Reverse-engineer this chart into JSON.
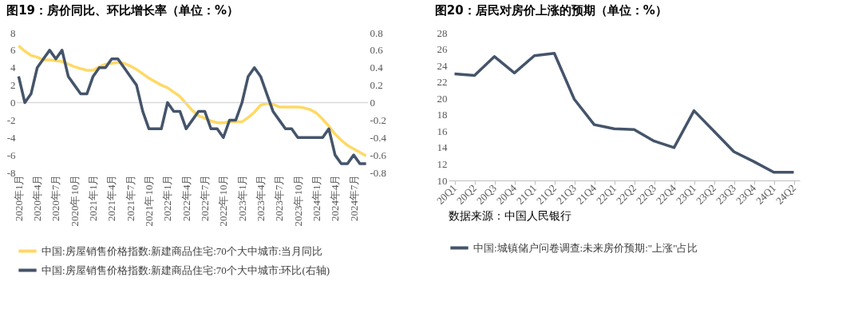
{
  "chart_data": [
    {
      "type": "line",
      "title": "图19：房价同比、环比增长率（单位：%）",
      "categories": [
        "2020年1月",
        null,
        null,
        "2020年4月",
        null,
        null,
        "2020年7月",
        null,
        null,
        "2020年10月",
        null,
        null,
        "2021年1月",
        null,
        null,
        "2021年4月",
        null,
        null,
        "2021年7月",
        null,
        null,
        "2021年10月",
        null,
        null,
        "2022年1月",
        null,
        null,
        "2022年4月",
        null,
        null,
        "2022年7月",
        null,
        null,
        "2022年10月",
        null,
        null,
        "2023年1月",
        null,
        null,
        "2023年4月",
        null,
        null,
        "2023年7月",
        null,
        null,
        "2023年10月",
        null,
        null,
        "2024年1月",
        null,
        null,
        "2024年4月",
        null,
        null,
        "2024年7月",
        null,
        null
      ],
      "series": [
        {
          "name": "中国:房屋销售价格指数:新建商品住宅:70个大中城市:当月同比",
          "color": "#ffd966",
          "values": [
            6.5,
            5.9,
            5.4,
            5.2,
            4.9,
            4.9,
            4.8,
            4.7,
            4.4,
            4.1,
            3.9,
            3.7,
            3.7,
            4.1,
            4.4,
            4.5,
            4.6,
            4.5,
            4.2,
            3.8,
            3.3,
            2.8,
            2.4,
            2.0,
            1.7,
            1.2,
            0.7,
            -0.1,
            -0.9,
            -1.5,
            -1.8,
            -2.1,
            -2.3,
            -2.3,
            -2.2,
            -2.2,
            -2.2,
            -1.7,
            -1.1,
            -0.3,
            -0.1,
            -0.2,
            -0.5,
            -0.5,
            -0.5,
            -0.5,
            -0.6,
            -0.8,
            -1.2,
            -1.9,
            -2.7,
            -3.6,
            -4.3,
            -4.9,
            -5.3,
            -5.7,
            -6.1
          ]
        },
        {
          "name": "中国:房屋销售价格指数:新建商品住宅:70个大中城市:环比(右轴)",
          "color": "#44546a",
          "axis": "y2",
          "values": [
            0.3,
            0.0,
            0.1,
            0.4,
            0.5,
            0.6,
            0.5,
            0.6,
            0.3,
            0.2,
            0.1,
            0.1,
            0.3,
            0.4,
            0.4,
            0.5,
            0.5,
            0.4,
            0.3,
            0.2,
            -0.1,
            -0.3,
            -0.3,
            -0.3,
            0.0,
            -0.1,
            -0.1,
            -0.3,
            -0.2,
            -0.1,
            -0.1,
            -0.3,
            -0.3,
            -0.4,
            -0.2,
            -0.2,
            0.0,
            0.3,
            0.4,
            0.3,
            0.1,
            -0.1,
            -0.2,
            -0.3,
            -0.3,
            -0.4,
            -0.4,
            -0.4,
            -0.4,
            -0.4,
            -0.3,
            -0.6,
            -0.7,
            -0.7,
            -0.6,
            -0.7,
            -0.7
          ]
        }
      ],
      "ylim": [
        -8,
        8
      ],
      "yticks": [
        -8,
        -6,
        -4,
        -2,
        0,
        2,
        4,
        6,
        8
      ],
      "y2lim": [
        -0.8,
        0.8
      ],
      "y2ticks": [
        -0.8,
        -0.6,
        -0.4,
        -0.2,
        0,
        0.2,
        0.4,
        0.6,
        0.8
      ],
      "ref_lines": [
        {
          "axis": "y",
          "value": 0,
          "color": "#d9d9d9"
        }
      ],
      "grid": false,
      "legend": "bottom"
    },
    {
      "type": "line",
      "title": "图20：居民对房价上涨的预期（单位：%）",
      "categories": [
        "20Q1",
        "20Q2",
        "20Q3",
        "20Q4",
        "21Q1",
        "21Q2",
        "21Q3",
        "21Q4",
        "22Q1",
        "22Q2",
        "22Q3",
        "22Q4",
        "23Q1",
        "23Q2",
        "23Q3",
        "23Q4",
        "24Q1",
        "24Q2"
      ],
      "series": [
        {
          "name": "中国:城镇储户问卷调查:未来房价预期:\"上涨\"占比",
          "color": "#44546a",
          "values": [
            23.0,
            22.8,
            25.1,
            23.1,
            25.2,
            25.5,
            19.9,
            16.8,
            16.3,
            16.2,
            14.8,
            14.0,
            18.5,
            16.0,
            13.5,
            12.3,
            11.0,
            11.0
          ]
        }
      ],
      "ylim": [
        10,
        28
      ],
      "yticks": [
        10,
        12,
        14,
        16,
        18,
        20,
        22,
        24,
        26,
        28
      ],
      "grid": false,
      "legend": "bottom",
      "annotations": [
        "数据来源：中国人民银行"
      ]
    }
  ]
}
